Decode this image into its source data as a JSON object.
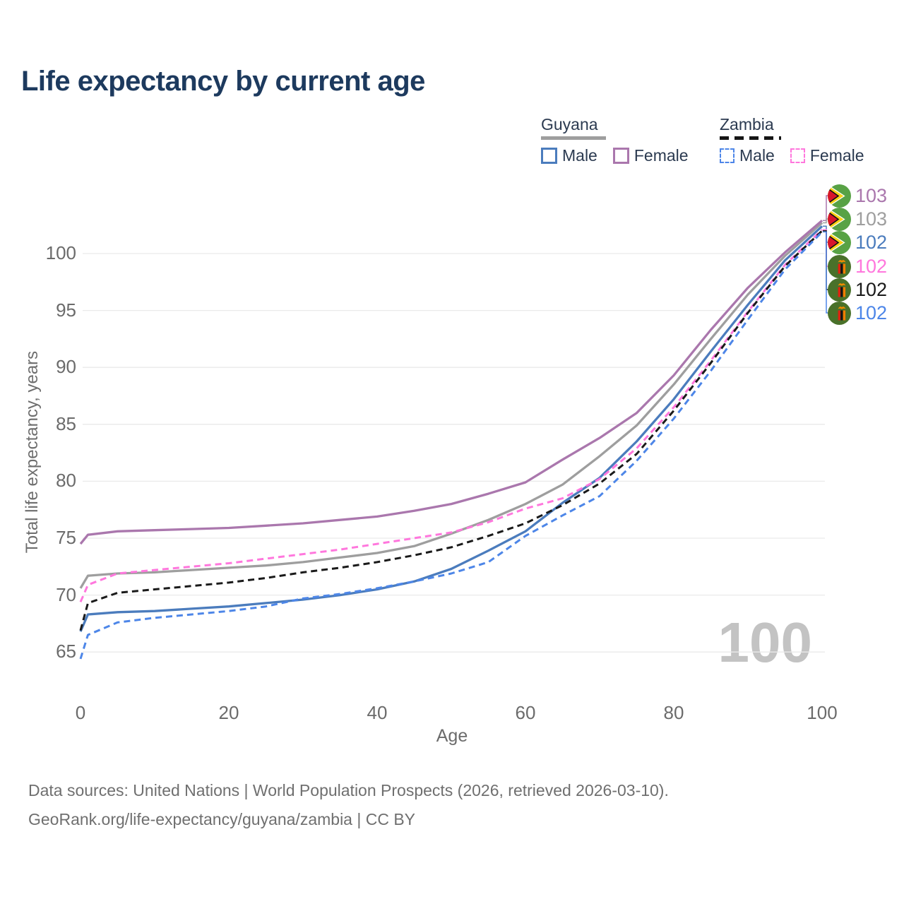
{
  "title": "Life expectancy by current age",
  "watermark": "100",
  "legend": {
    "groups": [
      {
        "label": "Guyana",
        "style": "solid",
        "underline_color": "#9e9e9e",
        "items": [
          {
            "label": "Male",
            "color": "#4b7cbd",
            "dashed": false
          },
          {
            "label": "Female",
            "color": "#aa77ad",
            "dashed": false
          }
        ]
      },
      {
        "label": "Zambia",
        "style": "dashed",
        "underline_color": "#151515",
        "items": [
          {
            "label": "Male",
            "color": "#4d86e8",
            "dashed": true
          },
          {
            "label": "Female",
            "color": "#ff77dd",
            "dashed": true
          }
        ]
      }
    ]
  },
  "y_axis": {
    "title": "Total life expectancy, years",
    "ticks": [
      65,
      70,
      75,
      80,
      85,
      90,
      95,
      100
    ]
  },
  "x_axis": {
    "title": "Age",
    "ticks": [
      0,
      20,
      40,
      60,
      80,
      100
    ]
  },
  "end_labels": [
    {
      "country": "guyana",
      "value": "103",
      "color": "#aa77ad"
    },
    {
      "country": "guyana",
      "value": "103",
      "color": "#9e9e9e"
    },
    {
      "country": "guyana",
      "value": "102",
      "color": "#4b7cbd"
    },
    {
      "country": "zambia",
      "value": "102",
      "color": "#ff77dd"
    },
    {
      "country": "zambia",
      "value": "102",
      "color": "#1a1a1a"
    },
    {
      "country": "zambia",
      "value": "102",
      "color": "#4d86e8"
    }
  ],
  "footer": {
    "line1": "Data sources: United Nations | World Population Prospects (2026, retrieved 2026-03-10).",
    "line2": "GeoRank.org/life-expectancy/guyana/zambia | CC BY"
  },
  "chart_data": {
    "type": "line",
    "title": "Life expectancy by current age",
    "xlabel": "Age",
    "ylabel": "Total life expectancy, years",
    "xlim": [
      0,
      100
    ],
    "ylim": [
      63,
      104
    ],
    "grid": "horizontal-only",
    "legend_position": "top-right",
    "x": [
      0,
      1,
      5,
      10,
      15,
      20,
      25,
      30,
      35,
      40,
      45,
      50,
      55,
      60,
      65,
      70,
      75,
      80,
      85,
      90,
      95,
      100
    ],
    "series": [
      {
        "name": "Guyana Female",
        "country": "Guyana",
        "sex": "Female",
        "color": "#aa77ad",
        "dash": "solid",
        "end_label": "103",
        "values": [
          74.5,
          75.3,
          75.6,
          75.7,
          75.8,
          75.9,
          76.1,
          76.3,
          76.6,
          76.9,
          77.4,
          78.0,
          78.9,
          79.9,
          81.9,
          83.8,
          86.0,
          89.3,
          93.3,
          97.0,
          100.1,
          102.9
        ]
      },
      {
        "name": "Guyana Both sexes",
        "country": "Guyana",
        "sex": "Both",
        "color": "#9e9e9e",
        "dash": "solid",
        "end_label": "103",
        "values": [
          70.6,
          71.7,
          71.9,
          72.0,
          72.2,
          72.4,
          72.6,
          72.9,
          73.3,
          73.7,
          74.3,
          75.4,
          76.6,
          78.0,
          79.7,
          82.2,
          84.9,
          88.5,
          92.5,
          96.4,
          99.8,
          102.7
        ]
      },
      {
        "name": "Guyana Male",
        "country": "Guyana",
        "sex": "Male",
        "color": "#4b7cbd",
        "dash": "solid",
        "end_label": "102",
        "values": [
          66.8,
          68.3,
          68.5,
          68.6,
          68.8,
          69.0,
          69.3,
          69.6,
          70.0,
          70.5,
          71.2,
          72.3,
          73.9,
          75.6,
          78.1,
          80.3,
          83.5,
          87.2,
          91.4,
          95.5,
          99.4,
          102.4
        ]
      },
      {
        "name": "Zambia Female",
        "country": "Zambia",
        "sex": "Female",
        "color": "#ff77dd",
        "dash": "dashed",
        "end_label": "102",
        "values": [
          69.4,
          70.9,
          71.9,
          72.2,
          72.5,
          72.8,
          73.2,
          73.6,
          74.0,
          74.5,
          75.0,
          75.5,
          76.4,
          77.6,
          78.5,
          80.2,
          82.9,
          86.5,
          90.6,
          94.9,
          99.0,
          102.1
        ]
      },
      {
        "name": "Zambia Both sexes",
        "country": "Zambia",
        "sex": "Both",
        "color": "#1a1a1a",
        "dash": "dashed",
        "end_label": "102",
        "values": [
          66.9,
          69.3,
          70.2,
          70.5,
          70.8,
          71.1,
          71.5,
          72.0,
          72.4,
          72.9,
          73.5,
          74.2,
          75.2,
          76.3,
          77.9,
          79.8,
          82.4,
          86.2,
          90.4,
          94.8,
          98.9,
          102.0
        ]
      },
      {
        "name": "Zambia Male",
        "country": "Zambia",
        "sex": "Male",
        "color": "#4d86e8",
        "dash": "dashed",
        "end_label": "102",
        "values": [
          64.4,
          66.5,
          67.6,
          68.0,
          68.3,
          68.6,
          69.0,
          69.7,
          70.1,
          70.6,
          71.2,
          71.9,
          72.9,
          75.2,
          77.0,
          78.7,
          81.8,
          85.5,
          89.7,
          94.2,
          98.6,
          101.9
        ]
      }
    ]
  }
}
